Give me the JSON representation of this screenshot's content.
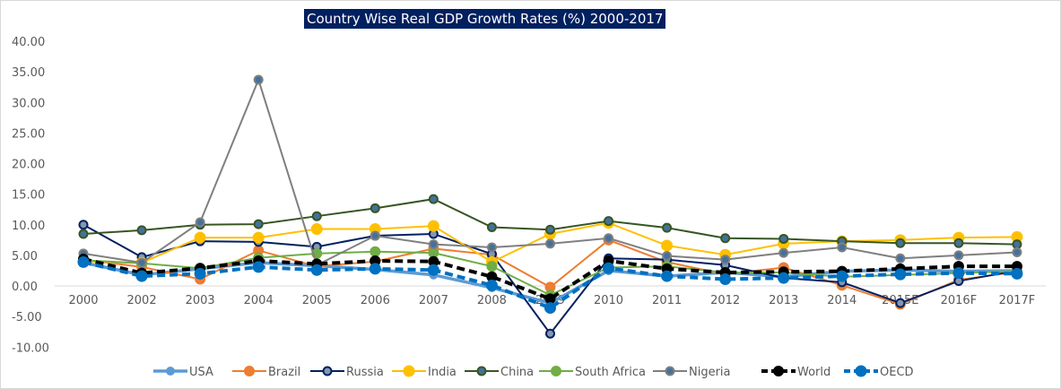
{
  "chart_data": {
    "type": "line",
    "title": "Country Wise Real GDP Growth Rates (%) 2000-2017",
    "categories": [
      "2000",
      "2002",
      "2003",
      "2004",
      "2005",
      "2006",
      "2007",
      "2008",
      "2009",
      "2010",
      "2011",
      "2012",
      "2013",
      "2014",
      "2015E",
      "2016F",
      "2017F"
    ],
    "ylim": [
      -10,
      40
    ],
    "yticks": [
      "40.00",
      "35.00",
      "30.00",
      "25.00",
      "20.00",
      "15.00",
      "10.00",
      "5.00",
      "0.00",
      "-5.00",
      "-10.00"
    ],
    "grid": false,
    "legend": "bottom",
    "series": [
      {
        "name": "USA",
        "color": "#5B9BD5",
        "values": [
          3.8,
          1.8,
          2.8,
          3.8,
          3.3,
          2.7,
          1.8,
          -0.3,
          -2.8,
          2.5,
          1.6,
          2.2,
          1.5,
          2.4,
          2.6,
          2.4,
          2.5
        ]
      },
      {
        "name": "Brazil",
        "color": "#ED7D31",
        "values": [
          4.3,
          3.1,
          1.1,
          5.8,
          3.2,
          4.0,
          6.1,
          5.1,
          -0.2,
          7.5,
          3.9,
          1.9,
          3.0,
          0.1,
          -3.0,
          1.0,
          2.3
        ]
      },
      {
        "name": "Russia",
        "color": "#002060",
        "values": [
          10.0,
          4.7,
          7.3,
          7.2,
          6.4,
          8.2,
          8.5,
          5.2,
          -7.8,
          4.5,
          4.3,
          3.4,
          1.3,
          0.6,
          -2.8,
          0.8,
          2.5
        ]
      },
      {
        "name": "India",
        "color": "#FFC000",
        "values": [
          4.0,
          3.8,
          7.9,
          7.9,
          9.3,
          9.3,
          9.8,
          3.9,
          8.5,
          10.3,
          6.6,
          5.1,
          6.9,
          7.3,
          7.5,
          7.9,
          8.0
        ]
      },
      {
        "name": "China",
        "color": "#375623",
        "values": [
          8.5,
          9.1,
          10.0,
          10.1,
          11.4,
          12.7,
          14.2,
          9.6,
          9.2,
          10.6,
          9.5,
          7.8,
          7.7,
          7.3,
          7.0,
          7.0,
          6.8
        ]
      },
      {
        "name": "South Africa",
        "color": "#70AD47",
        "values": [
          4.2,
          3.7,
          2.9,
          4.6,
          5.3,
          5.6,
          5.4,
          3.2,
          -1.5,
          3.0,
          3.2,
          2.2,
          2.2,
          1.5,
          1.8,
          2.1,
          2.4
        ]
      },
      {
        "name": "Nigeria",
        "color": "#7F7F7F",
        "values": [
          5.3,
          3.8,
          10.4,
          33.7,
          3.4,
          8.2,
          6.8,
          6.3,
          6.9,
          7.8,
          4.9,
          4.3,
          5.4,
          6.3,
          4.5,
          5.0,
          5.5
        ]
      },
      {
        "name": "World",
        "color": "#000000",
        "values": [
          4.4,
          2.1,
          2.9,
          4.1,
          3.6,
          4.1,
          4.0,
          1.5,
          -2.1,
          4.1,
          2.8,
          2.2,
          2.3,
          2.4,
          2.8,
          3.2,
          3.2
        ]
      },
      {
        "name": "OECD",
        "color": "#0070C0",
        "values": [
          3.9,
          1.6,
          2.0,
          3.1,
          2.6,
          2.8,
          2.6,
          0.1,
          -3.6,
          2.9,
          1.6,
          1.1,
          1.3,
          1.6,
          1.9,
          2.1,
          2.0
        ]
      }
    ]
  }
}
